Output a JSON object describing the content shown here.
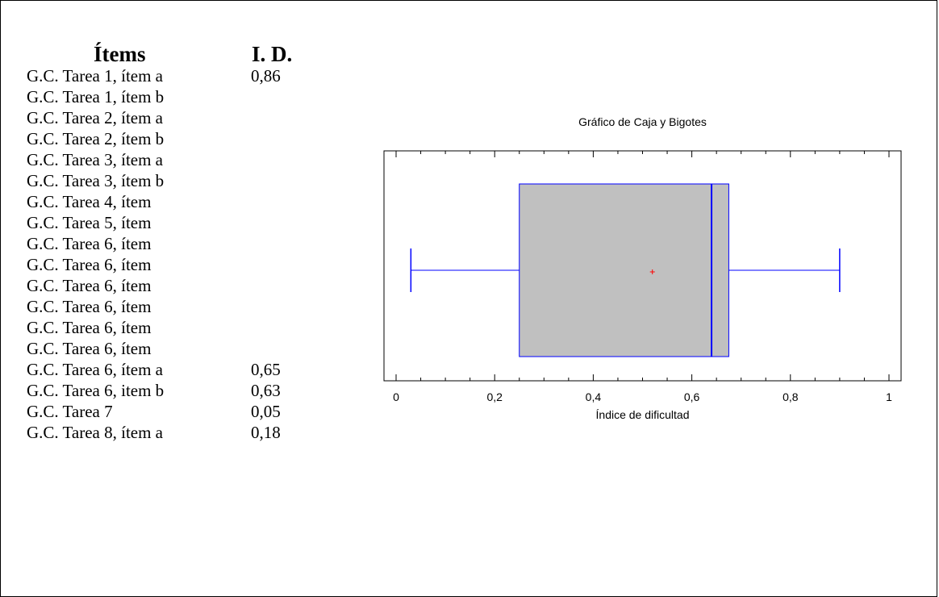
{
  "table": {
    "header": {
      "items": "Ítems",
      "id": "I. D."
    },
    "rows": [
      {
        "name": "G.C. Tarea 1, ítem a",
        "value": "0,86"
      },
      {
        "name": "G.C. Tarea 1, ítem b",
        "value": ""
      },
      {
        "name": "G.C. Tarea 2, ítem a",
        "value": ""
      },
      {
        "name": "G.C. Tarea 2, ítem b",
        "value": ""
      },
      {
        "name": "G.C. Tarea 3, ítem a",
        "value": ""
      },
      {
        "name": "G.C. Tarea 3, ítem b",
        "value": ""
      },
      {
        "name": "G.C. Tarea 4, ítem",
        "value": ""
      },
      {
        "name": "G.C. Tarea 5, ítem",
        "value": ""
      },
      {
        "name": "G.C. Tarea 6, ítem",
        "value": ""
      },
      {
        "name": "G.C. Tarea 6, ítem",
        "value": ""
      },
      {
        "name": "G.C. Tarea 6, ítem",
        "value": ""
      },
      {
        "name": "G.C. Tarea 6, ítem",
        "value": ""
      },
      {
        "name": "G.C. Tarea 6, ítem",
        "value": ""
      },
      {
        "name": "G.C. Tarea 6, ítem",
        "value": ""
      },
      {
        "name": "G.C. Tarea 6, ítem a",
        "value": "0,65"
      },
      {
        "name": "G.C. Tarea 6, item b",
        "value": "0,63"
      },
      {
        "name": "G.C. Tarea 7",
        "value": "0,05"
      },
      {
        "name": "G.C. Tarea 8, ítem a",
        "value": "0,18"
      }
    ]
  },
  "chart_data": {
    "type": "box",
    "title": "Gráfico de Caja y Bigotes",
    "xlabel": "Índice de dificultad",
    "xlim": [
      0,
      1
    ],
    "ticks": [
      0,
      0.2,
      0.4,
      0.6,
      0.8,
      1
    ],
    "tick_labels": [
      "0",
      "0,2",
      "0,4",
      "0,6",
      "0,8",
      "1"
    ],
    "min": 0.03,
    "q1": 0.25,
    "median": 0.64,
    "q3": 0.675,
    "max": 0.9,
    "mean": 0.52,
    "colors": {
      "box_fill": "#c0c0c0",
      "box_stroke": "#0000ff",
      "mean_marker": "#ff0000"
    }
  }
}
